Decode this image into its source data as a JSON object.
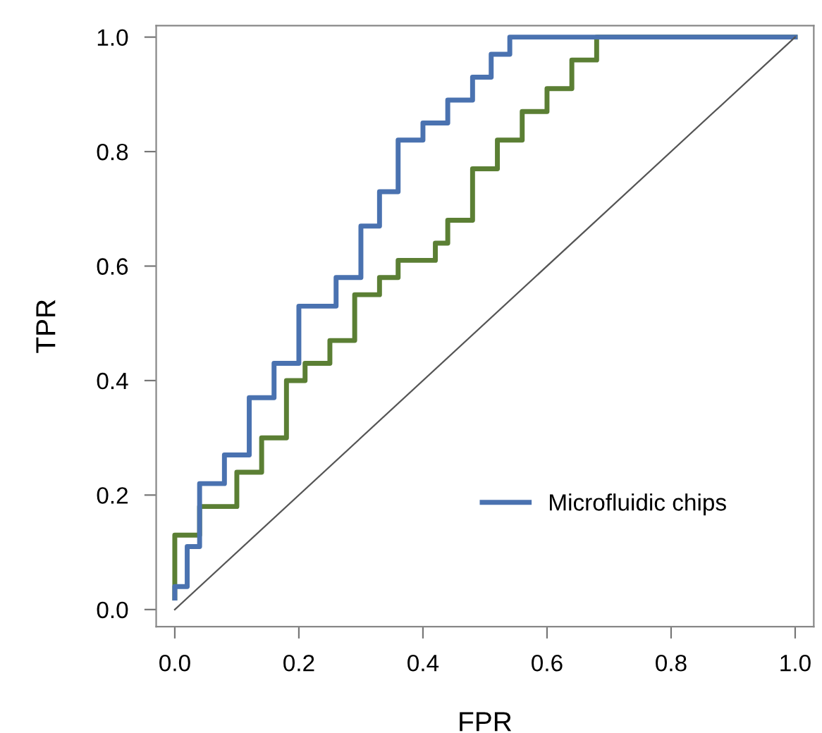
{
  "chart_data": {
    "type": "step",
    "xlabel": "FPR",
    "ylabel": "TPR",
    "xlim": [
      -0.03,
      1.03
    ],
    "ylim": [
      -0.03,
      1.02
    ],
    "xticks": [
      {
        "value": 0,
        "label": "0.0"
      },
      {
        "value": 0.2,
        "label": "0.2"
      },
      {
        "value": 0.4,
        "label": "0.4"
      },
      {
        "value": 0.6,
        "label": "0.6"
      },
      {
        "value": 0.8,
        "label": "0.8"
      },
      {
        "value": 1,
        "label": "1.0"
      }
    ],
    "yticks": [
      {
        "value": 0,
        "label": "0.0"
      },
      {
        "value": 0.2,
        "label": "0.2"
      },
      {
        "value": 0.4,
        "label": "0.4"
      },
      {
        "value": 0.6,
        "label": "0.6"
      },
      {
        "value": 0.8,
        "label": "0.8"
      },
      {
        "value": 1,
        "label": "1.0"
      }
    ],
    "grid": false,
    "legend": "lower right",
    "marker": "none",
    "line_style": "solid",
    "series": [
      {
        "color": "#5b7f34",
        "x": [
          0,
          0,
          0.04,
          0.1,
          0.14,
          0.18,
          0.21,
          0.25,
          0.29,
          0.33,
          0.36,
          0.42,
          0.44,
          0.48,
          0.52,
          0.56,
          0.6,
          0.64,
          0.68,
          1.0
        ],
        "values": [
          0.02,
          0.13,
          0.18,
          0.24,
          0.3,
          0.4,
          0.43,
          0.47,
          0.55,
          0.58,
          0.61,
          0.64,
          0.68,
          0.77,
          0.82,
          0.87,
          0.91,
          0.96,
          1.0,
          1.0
        ]
      },
      {
        "name": "Microfluidic chips",
        "color": "#4a72b0",
        "x": [
          0,
          0,
          0.02,
          0.04,
          0.08,
          0.12,
          0.16,
          0.2,
          0.26,
          0.3,
          0.33,
          0.36,
          0.4,
          0.44,
          0.48,
          0.51,
          0.54,
          1.0
        ],
        "values": [
          0.02,
          0.04,
          0.11,
          0.22,
          0.27,
          0.37,
          0.43,
          0.53,
          0.58,
          0.67,
          0.73,
          0.82,
          0.85,
          0.89,
          0.93,
          0.97,
          1.0,
          1.0
        ]
      },
      {
        "type": "line",
        "color": "#555555",
        "line_style": "solid",
        "x": [
          0,
          1
        ],
        "values": [
          0,
          1
        ]
      }
    ]
  }
}
